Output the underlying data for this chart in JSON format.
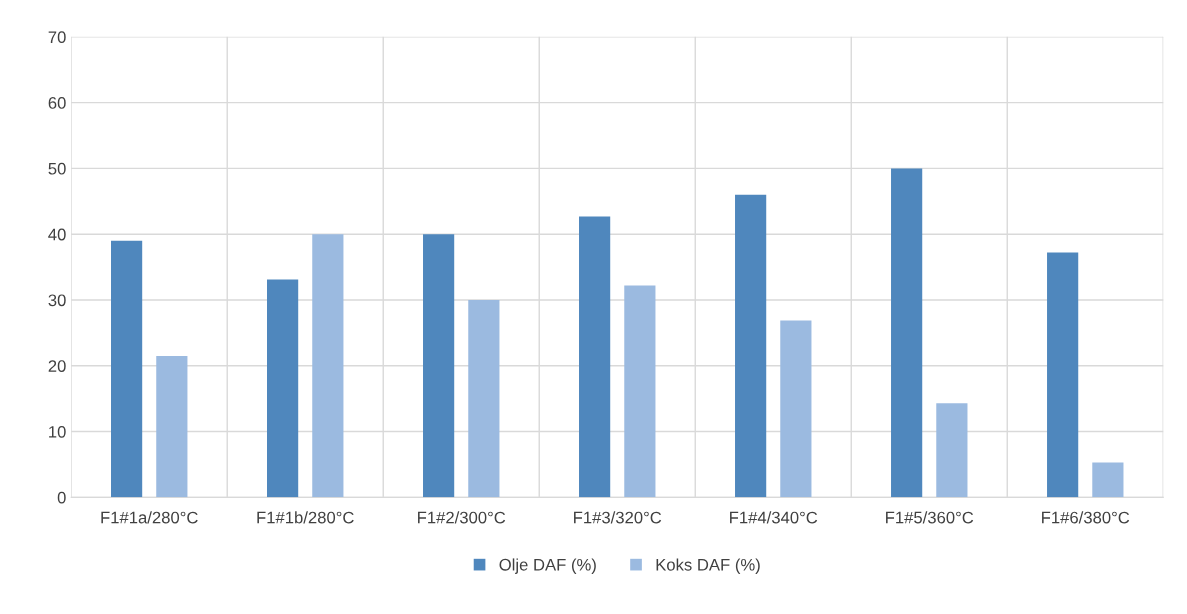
{
  "chart_data": {
    "type": "bar",
    "categories": [
      "F1#1a/280°C",
      "F1#1b/280°C",
      "F1#2/300°C",
      "F1#3/320°C",
      "F1#4/340°C",
      "F1#5/360°C",
      "F1#6/380°C"
    ],
    "series": [
      {
        "name": "Olje DAF (%)",
        "color": "#4f87bd",
        "values": [
          39.0,
          33.1,
          40.0,
          42.7,
          46.0,
          50.0,
          37.2
        ]
      },
      {
        "name": "Koks DAF (%)",
        "color": "#9bbae0",
        "values": [
          21.5,
          40.0,
          30.0,
          32.2,
          26.9,
          14.3,
          5.3
        ]
      }
    ],
    "ylim": [
      0,
      70
    ],
    "yticks": [
      0,
      10,
      20,
      30,
      40,
      50,
      60,
      70
    ],
    "grid": true,
    "legend": "bottom"
  }
}
